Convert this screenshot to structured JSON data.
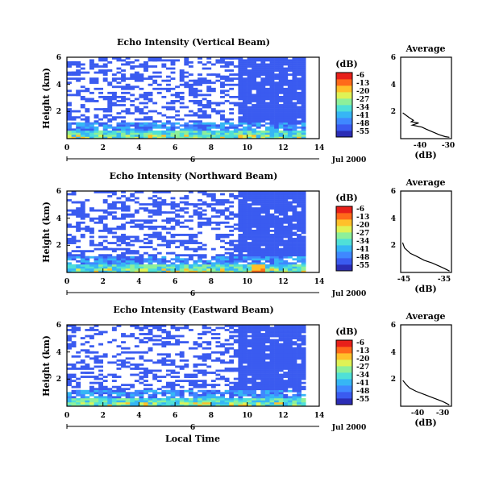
{
  "chart_data": [
    {
      "type": "heatmap",
      "title": "Echo Intensity (Vertical Beam)",
      "ylabel": "Height (km)",
      "x_ticks": [
        "0",
        "2",
        "4",
        "6",
        "8",
        "10",
        "12",
        "14"
      ],
      "y_ticks": [
        "6",
        "4",
        "2"
      ],
      "xlim": [
        0,
        14
      ],
      "ylim": [
        0,
        6
      ],
      "date_label": "Jul 2000",
      "day_label": "6",
      "colorbar": {
        "unit": "(dB)",
        "ticks": [
          "-6",
          "-13",
          "-20",
          "-27",
          "-34",
          "-41",
          "-48",
          "-55"
        ],
        "range": [
          -56,
          -5
        ]
      },
      "data_end_hour": 13.2,
      "low_echo_region": [
        9.3,
        13.2
      ],
      "average_profile": {
        "title": "Average",
        "xlabel": "(dB)",
        "x_ticks": [
          "-40",
          "-30"
        ],
        "y_ticks": [
          "6",
          "4",
          "2"
        ],
        "xlim": [
          -52,
          -28
        ],
        "ylim": [
          0,
          6
        ],
        "points": [
          [
            -51,
            1.9
          ],
          [
            -48,
            1.55
          ],
          [
            -46,
            1.35
          ],
          [
            -47,
            1.25
          ],
          [
            -43.5,
            1.15
          ],
          [
            -46.5,
            1.0
          ],
          [
            -42,
            0.85
          ],
          [
            -40,
            0.7
          ],
          [
            -37,
            0.5
          ],
          [
            -34,
            0.3
          ],
          [
            -31,
            0.15
          ],
          [
            -29,
            0.1
          ]
        ]
      }
    },
    {
      "type": "heatmap",
      "title": "Echo Intensity (Northward Beam)",
      "ylabel": "Height (km)",
      "x_ticks": [
        "0",
        "2",
        "4",
        "6",
        "8",
        "10",
        "12",
        "14"
      ],
      "y_ticks": [
        "6",
        "4",
        "2"
      ],
      "xlim": [
        0,
        14
      ],
      "ylim": [
        0,
        6
      ],
      "date_label": "Jul 2000",
      "day_label": "6",
      "colorbar": {
        "unit": "(dB)",
        "ticks": [
          "-6",
          "-13",
          "-20",
          "-27",
          "-34",
          "-41",
          "-48",
          "-55"
        ],
        "range": [
          -56,
          -5
        ]
      },
      "data_end_hour": 13.2,
      "low_echo_region": [
        9.3,
        13.2
      ],
      "average_profile": {
        "title": "Average",
        "xlabel": "(dB)",
        "x_ticks": [
          "-45",
          "-35"
        ],
        "y_ticks": [
          "6",
          "4",
          "2"
        ],
        "xlim": [
          -47,
          -34
        ],
        "ylim": [
          0,
          6
        ],
        "points": [
          [
            -46.5,
            2.2
          ],
          [
            -46,
            1.8
          ],
          [
            -44.5,
            1.4
          ],
          [
            -43,
            1.2
          ],
          [
            -41,
            0.9
          ],
          [
            -39,
            0.7
          ],
          [
            -37,
            0.45
          ],
          [
            -35.5,
            0.25
          ],
          [
            -34.5,
            0.1
          ]
        ]
      }
    },
    {
      "type": "heatmap",
      "title": "Echo Intensity (Eastward Beam)",
      "ylabel": "Height (km)",
      "xlabel": "Local Time",
      "x_ticks": [
        "0",
        "2",
        "4",
        "6",
        "8",
        "10",
        "12",
        "14"
      ],
      "y_ticks": [
        "6",
        "4",
        "2"
      ],
      "xlim": [
        0,
        14
      ],
      "ylim": [
        0,
        6
      ],
      "date_label": "Jul 2000",
      "day_label": "6",
      "colorbar": {
        "unit": "(dB)",
        "ticks": [
          "-6",
          "-13",
          "-20",
          "-27",
          "-34",
          "-41",
          "-48",
          "-55"
        ],
        "range": [
          -56,
          -5
        ]
      },
      "data_end_hour": 13.2,
      "low_echo_region": [
        9.3,
        13.2
      ],
      "average_profile": {
        "title": "Average",
        "xlabel": "(dB)",
        "x_ticks": [
          "-40",
          "-30"
        ],
        "y_ticks": [
          "6",
          "4",
          "2"
        ],
        "xlim": [
          -50,
          -27
        ],
        "ylim": [
          0,
          6
        ],
        "points": [
          [
            -49,
            1.9
          ],
          [
            -47.5,
            1.6
          ],
          [
            -46,
            1.35
          ],
          [
            -43,
            1.1
          ],
          [
            -39,
            0.85
          ],
          [
            -35,
            0.6
          ],
          [
            -31,
            0.35
          ],
          [
            -28,
            0.1
          ]
        ]
      }
    }
  ],
  "colormap": [
    "#2b2db5",
    "#3a5bf0",
    "#3f88ff",
    "#36b6f5",
    "#4fe0d8",
    "#8df09a",
    "#dff255",
    "#ffc02a",
    "#ff6a1a",
    "#e8201a"
  ]
}
